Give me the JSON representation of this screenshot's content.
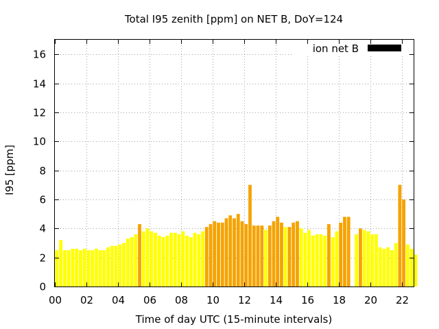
{
  "colors": {
    "low": "#ffff00",
    "high": "#f5a300",
    "legend_swatch": "#000000"
  },
  "chart_data": {
    "type": "bar",
    "title": "Total I95 zenith [ppm] on NET B, DoY=124",
    "xlabel": "Time of day UTC (15-minute intervals)",
    "ylabel": "I95 [ppm]",
    "xlim": [
      0,
      22.75
    ],
    "ylim": [
      0,
      17
    ],
    "xticks": [
      "00",
      "02",
      "04",
      "06",
      "08",
      "10",
      "12",
      "14",
      "16",
      "18",
      "20",
      "22"
    ],
    "yticks": [
      "0",
      "2",
      "4",
      "6",
      "8",
      "10",
      "12",
      "14",
      "16"
    ],
    "grid": true,
    "legend": {
      "label": "ion net B",
      "position": "top-right"
    },
    "interval_hours": 0.25,
    "values": [
      2.5,
      3.2,
      2.5,
      2.5,
      2.6,
      2.6,
      2.5,
      2.6,
      2.5,
      2.5,
      2.6,
      2.5,
      2.5,
      2.7,
      2.8,
      2.8,
      2.9,
      3.0,
      3.3,
      3.4,
      3.6,
      4.3,
      3.8,
      4.0,
      3.8,
      3.7,
      3.5,
      3.4,
      3.5,
      3.7,
      3.7,
      3.6,
      3.8,
      3.5,
      3.4,
      3.7,
      3.6,
      3.8,
      4.1,
      4.3,
      4.5,
      4.4,
      4.4,
      4.7,
      4.9,
      4.7,
      5.0,
      4.5,
      4.3,
      7.0,
      4.2,
      4.2,
      4.2,
      3.9,
      4.2,
      4.5,
      4.8,
      4.4,
      4.1,
      4.1,
      4.4,
      4.5,
      4.0,
      3.7,
      3.9,
      3.5,
      3.6,
      3.6,
      3.5,
      4.3,
      3.4,
      3.8,
      4.4,
      4.8,
      4.8,
      null,
      3.6,
      4.0,
      3.9,
      3.8,
      3.6,
      3.6,
      2.7,
      2.6,
      2.7,
      2.5,
      3.0,
      7.0,
      6.0,
      2.9,
      2.6,
      2.2
    ],
    "levels": [
      "low",
      "low",
      "low",
      "low",
      "low",
      "low",
      "low",
      "low",
      "low",
      "low",
      "low",
      "low",
      "low",
      "low",
      "low",
      "low",
      "low",
      "low",
      "low",
      "low",
      "low",
      "high",
      "low",
      "low",
      "low",
      "low",
      "low",
      "low",
      "low",
      "low",
      "low",
      "low",
      "low",
      "low",
      "low",
      "low",
      "low",
      "low",
      "high",
      "high",
      "high",
      "high",
      "high",
      "high",
      "high",
      "high",
      "high",
      "high",
      "high",
      "high",
      "high",
      "high",
      "high",
      "low",
      "high",
      "high",
      "high",
      "high",
      "low",
      "high",
      "high",
      "high",
      "low",
      "low",
      "low",
      "low",
      "low",
      "low",
      "low",
      "high",
      "low",
      "low",
      "high",
      "high",
      "high",
      null,
      "low",
      "high",
      "low",
      "low",
      "low",
      "low",
      "low",
      "low",
      "low",
      "low",
      "low",
      "high",
      "high",
      "low",
      "low",
      "low"
    ]
  }
}
